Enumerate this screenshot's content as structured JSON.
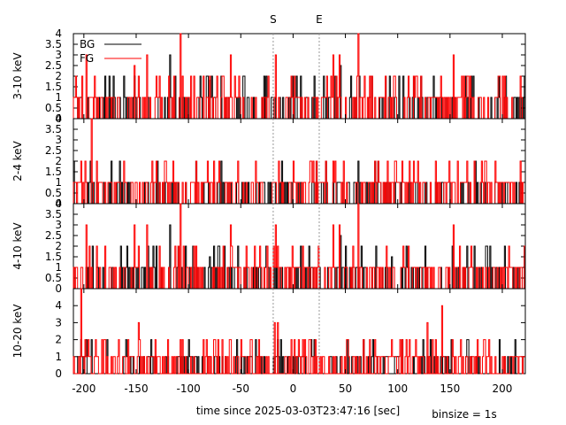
{
  "chart_data": {
    "type": "line",
    "style": "step-histogram",
    "xlabel": "time since 2025-03-03T23:47:16 [sec]",
    "binsize_label": "binsize = 1s",
    "xlim": [
      -210,
      222
    ],
    "xticks": [
      -200,
      -150,
      -100,
      -50,
      0,
      50,
      100,
      150,
      200
    ],
    "markers": [
      {
        "label": "S",
        "x": -19
      },
      {
        "label": "E",
        "x": 25
      }
    ],
    "legend": {
      "position": "top-left",
      "entries": [
        {
          "name": "BG",
          "color": "#000000"
        },
        {
          "name": "FG",
          "color": "#ff0000"
        }
      ]
    },
    "panels": [
      {
        "ylabel": "3-10 keV",
        "ylim": [
          0,
          4
        ],
        "yticks": [
          "0",
          "0.5",
          "1",
          "1.5",
          "2",
          "2.5",
          "3",
          "3.5",
          "4"
        ],
        "series": [
          {
            "name": "BG",
            "color": "#000000",
            "spikes": [
              [
                -118,
                3
              ],
              [
                -80,
                1.8
              ],
              [
                -10,
                1
              ],
              [
                18,
                1
              ],
              [
                20,
                2
              ],
              [
                45,
                2.5
              ],
              [
                60,
                1
              ],
              [
                92,
                2
              ],
              [
                128,
                1
              ]
            ]
          },
          {
            "name": "FG",
            "color": "#ff0000",
            "spikes": [
              [
                -208,
                2
              ],
              [
                -198,
                3
              ],
              [
                -190,
                2
              ],
              [
                -168,
                1
              ],
              [
                -152,
                2.5
              ],
              [
                -140,
                3
              ],
              [
                -128,
                2
              ],
              [
                -108,
                4
              ],
              [
                -95,
                2
              ],
              [
                -68,
                2
              ],
              [
                -60,
                3
              ],
              [
                -40,
                1
              ],
              [
                -17,
                3
              ],
              [
                6,
                1
              ],
              [
                14,
                1
              ],
              [
                -2,
                2
              ],
              [
                30,
                1
              ],
              [
                38,
                3
              ],
              [
                44,
                3
              ],
              [
                62,
                4
              ],
              [
                75,
                2
              ],
              [
                88,
                2
              ],
              [
                110,
                2
              ],
              [
                118,
                2
              ],
              [
                130,
                1
              ],
              [
                142,
                1
              ],
              [
                153,
                3
              ],
              [
                165,
                1
              ],
              [
                172,
                1
              ],
              [
                178,
                1
              ]
            ]
          }
        ]
      },
      {
        "ylabel": "2-4 keV",
        "ylim": [
          0,
          4
        ],
        "yticks": [
          "0",
          "0.5",
          "1",
          "1.5",
          "2",
          "2.5",
          "3",
          "3.5",
          "4"
        ],
        "series": [
          {
            "name": "BG",
            "color": "#000000",
            "spikes": [
              [
                -116,
                1
              ],
              [
                -30,
                1
              ],
              [
                -22,
                1
              ],
              [
                -10,
                1
              ],
              [
                18,
                1
              ],
              [
                58,
                1
              ],
              [
                70,
                1
              ],
              [
                76,
                1
              ],
              [
                97,
                1
              ],
              [
                136,
                1
              ]
            ]
          },
          {
            "name": "FG",
            "color": "#ff0000",
            "spikes": [
              [
                -208,
                1
              ],
              [
                -198,
                1
              ],
              [
                -193,
                4
              ],
              [
                -188,
                2
              ],
              [
                -175,
                1
              ],
              [
                -168,
                1
              ],
              [
                -150,
                1
              ],
              [
                -140,
                1
              ],
              [
                -128,
                1
              ],
              [
                -110,
                1
              ],
              [
                -95,
                1
              ],
              [
                -70,
                1
              ],
              [
                -60,
                1
              ],
              [
                -45,
                1
              ],
              [
                -13,
                1
              ],
              [
                -3,
                1
              ],
              [
                0,
                2
              ],
              [
                10,
                1
              ],
              [
                18,
                1
              ],
              [
                46,
                1
              ],
              [
                68,
                1
              ],
              [
                80,
                1
              ],
              [
                95,
                1
              ],
              [
                108,
                1
              ],
              [
                118,
                1
              ],
              [
                148,
                1
              ],
              [
                152,
                1
              ],
              [
                195,
                1
              ]
            ]
          }
        ]
      },
      {
        "ylabel": "4-10 keV",
        "ylim": [
          0,
          4
        ],
        "yticks": [
          "0",
          "0.5",
          "1",
          "1.5",
          "2",
          "2.5",
          "3",
          "3.5",
          "4"
        ],
        "series": [
          {
            "name": "BG",
            "color": "#000000",
            "spikes": [
              [
                -118,
                3
              ],
              [
                -80,
                1.5
              ],
              [
                -58,
                1
              ],
              [
                -12,
                1
              ],
              [
                18,
                1
              ],
              [
                22,
                1
              ],
              [
                45,
                2.5
              ],
              [
                60,
                1
              ],
              [
                94,
                1.5
              ],
              [
                128,
                1
              ]
            ]
          },
          {
            "name": "FG",
            "color": "#ff0000",
            "spikes": [
              [
                -208,
                1
              ],
              [
                -198,
                3
              ],
              [
                -188,
                2
              ],
              [
                -175,
                1
              ],
              [
                -152,
                3
              ],
              [
                -140,
                3
              ],
              [
                -128,
                2
              ],
              [
                -108,
                4
              ],
              [
                -95,
                2
              ],
              [
                -75,
                1
              ],
              [
                -60,
                3
              ],
              [
                -43,
                1
              ],
              [
                -17,
                3
              ],
              [
                -8,
                1
              ],
              [
                5,
                1
              ],
              [
                16,
                1
              ],
              [
                30,
                1
              ],
              [
                38,
                3
              ],
              [
                44,
                3
              ],
              [
                62,
                4
              ],
              [
                80,
                1
              ],
              [
                90,
                1
              ],
              [
                110,
                2
              ],
              [
                124,
                1
              ],
              [
                130,
                1
              ],
              [
                140,
                1
              ],
              [
                153,
                3
              ],
              [
                164,
                1
              ],
              [
                178,
                1
              ]
            ]
          }
        ]
      },
      {
        "ylabel": "10-20 keV",
        "ylim": [
          0,
          5
        ],
        "yticks": [
          "0",
          "1",
          "2",
          "3",
          "4"
        ],
        "series": [
          {
            "name": "BG",
            "color": "#000000",
            "spikes": [
              [
                -100,
                2
              ],
              [
                -65,
                1
              ],
              [
                -50,
                1
              ],
              [
                -15,
                2
              ],
              [
                10,
                1
              ],
              [
                20,
                2
              ],
              [
                35,
                1
              ],
              [
                45,
                1
              ],
              [
                80,
                1
              ],
              [
                98,
                1
              ],
              [
                115,
                1
              ],
              [
                130,
                1
              ],
              [
                148,
                1
              ],
              [
                165,
                1
              ],
              [
                175,
                1
              ]
            ]
          },
          {
            "name": "FG",
            "color": "#ff0000",
            "spikes": [
              [
                -203,
                5
              ],
              [
                -196,
                2
              ],
              [
                -180,
                2
              ],
              [
                -172,
                1
              ],
              [
                -158,
                2
              ],
              [
                -148,
                3
              ],
              [
                -140,
                1
              ],
              [
                -132,
                2
              ],
              [
                -120,
                2
              ],
              [
                -108,
                2
              ],
              [
                -95,
                1
              ],
              [
                -83,
                2
              ],
              [
                -72,
                2
              ],
              [
                -60,
                2
              ],
              [
                -40,
                2
              ],
              [
                -30,
                1
              ],
              [
                -18,
                3
              ],
              [
                -15,
                3
              ],
              [
                -2,
                2
              ],
              [
                12,
                1
              ],
              [
                28,
                1
              ],
              [
                40,
                1
              ],
              [
                60,
                1
              ],
              [
                70,
                1
              ],
              [
                85,
                1
              ],
              [
                102,
                2
              ],
              [
                110,
                1
              ],
              [
                117,
                2
              ],
              [
                128,
                3
              ],
              [
                133,
                2
              ],
              [
                142,
                4
              ],
              [
                152,
                2
              ],
              [
                160,
                2
              ],
              [
                174,
                1
              ],
              [
                185,
                1
              ],
              [
                200,
                1
              ],
              [
                218,
                1
              ]
            ]
          }
        ]
      }
    ]
  }
}
